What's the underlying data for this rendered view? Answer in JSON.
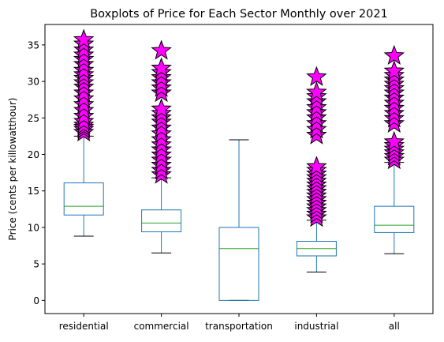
{
  "chart_data": {
    "type": "boxplot",
    "title": "Boxplots of Price for Each Sector Monthly over 2021",
    "xlabel": "",
    "ylabel": "Price (cents per killowatthour)",
    "ylim": [
      -1.8,
      37.8
    ],
    "yticks": [
      0,
      5,
      10,
      15,
      20,
      25,
      30,
      35
    ],
    "grid": false,
    "colors": {
      "box": "#1f77b4",
      "median": "#2ca02c",
      "whisker_cap": "#000000",
      "flier_fill": "#ff00ff",
      "flier_edge": "#000000"
    },
    "flier_marker": "star",
    "categories": [
      "residential",
      "commercial",
      "transportation",
      "industrial",
      "all"
    ],
    "boxes": [
      {
        "label": "residential",
        "whislo": 8.8,
        "q1": 11.7,
        "med": 12.9,
        "q3": 16.1,
        "whishi": 22.5,
        "fliers": [
          23.0,
          23.4,
          23.7,
          24.0,
          24.5,
          25.2,
          26.0,
          26.8,
          27.6,
          28.4,
          29.2,
          29.8,
          30.4,
          30.9,
          31.5,
          32.3,
          33.0,
          33.6,
          34.3,
          35.1,
          35.7
        ]
      },
      {
        "label": "commercial",
        "whislo": 6.5,
        "q1": 9.4,
        "med": 10.6,
        "q3": 12.4,
        "whishi": 16.8,
        "fliers": [
          17.2,
          17.8,
          18.5,
          19.2,
          19.9,
          20.6,
          21.3,
          22.0,
          22.8,
          23.6,
          24.4,
          25.0,
          25.6,
          26.2,
          28.4,
          29.1,
          29.8,
          30.5,
          31.2,
          31.8,
          34.2
        ]
      },
      {
        "label": "transportation",
        "whislo": 0.0,
        "q1": 0.0,
        "med": 7.1,
        "q3": 10.0,
        "whishi": 22.0,
        "fliers": []
      },
      {
        "label": "industrial",
        "whislo": 3.9,
        "q1": 6.1,
        "med": 7.1,
        "q3": 8.1,
        "whishi": 11.0,
        "fliers": [
          11.3,
          11.8,
          12.3,
          12.8,
          13.3,
          13.8,
          14.3,
          14.8,
          15.3,
          15.8,
          16.3,
          16.8,
          17.3,
          17.8,
          18.3,
          22.6,
          23.4,
          24.2,
          25.0,
          25.7,
          26.4,
          27.2,
          27.9,
          28.5,
          30.6
        ]
      },
      {
        "label": "all",
        "whislo": 6.4,
        "q1": 9.3,
        "med": 10.3,
        "q3": 12.9,
        "whishi": 18.9,
        "fliers": [
          19.2,
          19.7,
          20.2,
          20.7,
          21.2,
          21.7,
          24.2,
          24.9,
          25.6,
          26.3,
          27.0,
          27.7,
          28.4,
          29.0,
          29.6,
          30.2,
          30.8,
          31.4,
          33.5
        ]
      }
    ]
  }
}
